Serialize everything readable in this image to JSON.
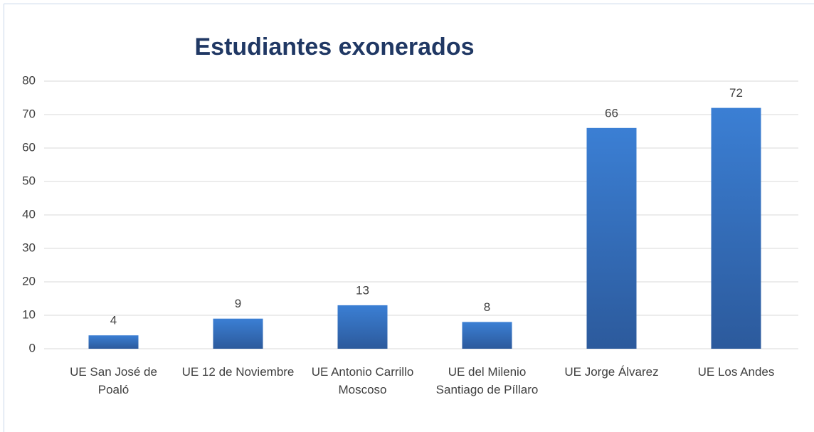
{
  "chart_data": {
    "type": "bar",
    "title": "Estudiantes exonerados",
    "categories": [
      "UE San José de Poaló",
      "UE 12 de Noviembre",
      "UE Antonio Carrillo Moscoso",
      "UE del Milenio Santiago de Píllaro",
      "UE Jorge Álvarez",
      "UE Los Andes"
    ],
    "values": [
      4,
      9,
      13,
      8,
      66,
      72
    ],
    "color": "#3b7fd4",
    "ylim": [
      0,
      80
    ],
    "yticks": [
      0,
      10,
      20,
      30,
      40,
      50,
      60,
      70,
      80
    ],
    "grid": true
  }
}
